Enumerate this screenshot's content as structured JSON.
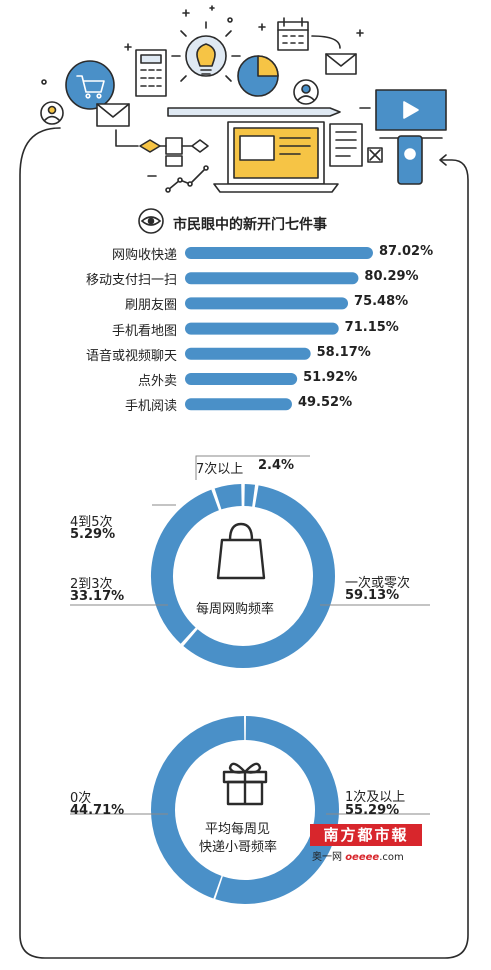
{
  "title": "市民眼中的新开门七件事",
  "colors": {
    "accent": "#4a90c8",
    "track": "#dfe9f3",
    "outline": "#2b2b2b",
    "highlight": "#f6c445"
  },
  "icons": {
    "header": [
      "cart-icon",
      "envelope-icon",
      "calculator-icon",
      "lightbulb-icon",
      "pie-chart-icon",
      "calendar-icon",
      "user-icon",
      "video-player-icon",
      "laptop-icon",
      "document-icon",
      "phone-icon",
      "flowchart-icon",
      "line-graph-icon"
    ],
    "title": "eye-icon",
    "donut1": "shopping-bag-icon",
    "donut2": "gift-box-icon"
  },
  "chart_data": [
    {
      "type": "bar",
      "title": "市民眼中的新开门七件事",
      "orientation": "horizontal",
      "categories": [
        "网购收快递",
        "移动支付扫一扫",
        "刷朋友圈",
        "手机看地图",
        "语音或视频聊天",
        "点外卖",
        "手机阅读"
      ],
      "values": [
        87.02,
        80.29,
        75.48,
        71.15,
        58.17,
        51.92,
        49.52
      ],
      "value_labels": [
        "87.02%",
        "80.29%",
        "75.48%",
        "71.15%",
        "58.17%",
        "51.92%",
        "49.52%"
      ],
      "unit": "%",
      "xlim": [
        0,
        100
      ]
    },
    {
      "type": "pie",
      "title": "每周网购频率",
      "donut": true,
      "slices": [
        {
          "label": "7次以上",
          "value": 2.4,
          "value_label": "2.4%"
        },
        {
          "label": "一次或零次",
          "value": 59.13,
          "value_label": "59.13%"
        },
        {
          "label": "2到3次",
          "value": 33.17,
          "value_label": "33.17%"
        },
        {
          "label": "4到5次",
          "value": 5.29,
          "value_label": "5.29%"
        }
      ]
    },
    {
      "type": "pie",
      "title": "平均每周见快递小哥频率",
      "title_lines": [
        "平均每周见",
        "快递小哥频率"
      ],
      "donut": true,
      "slices": [
        {
          "label": "1次及以上",
          "value": 55.29,
          "value_label": "55.29%"
        },
        {
          "label": "0次",
          "value": 44.71,
          "value_label": "44.71%"
        }
      ]
    }
  ],
  "watermark": {
    "name": "南方都市報",
    "sub_prefix": "奥一网",
    "sub_domain": "oeeee",
    "sub_suffix": ".com"
  }
}
